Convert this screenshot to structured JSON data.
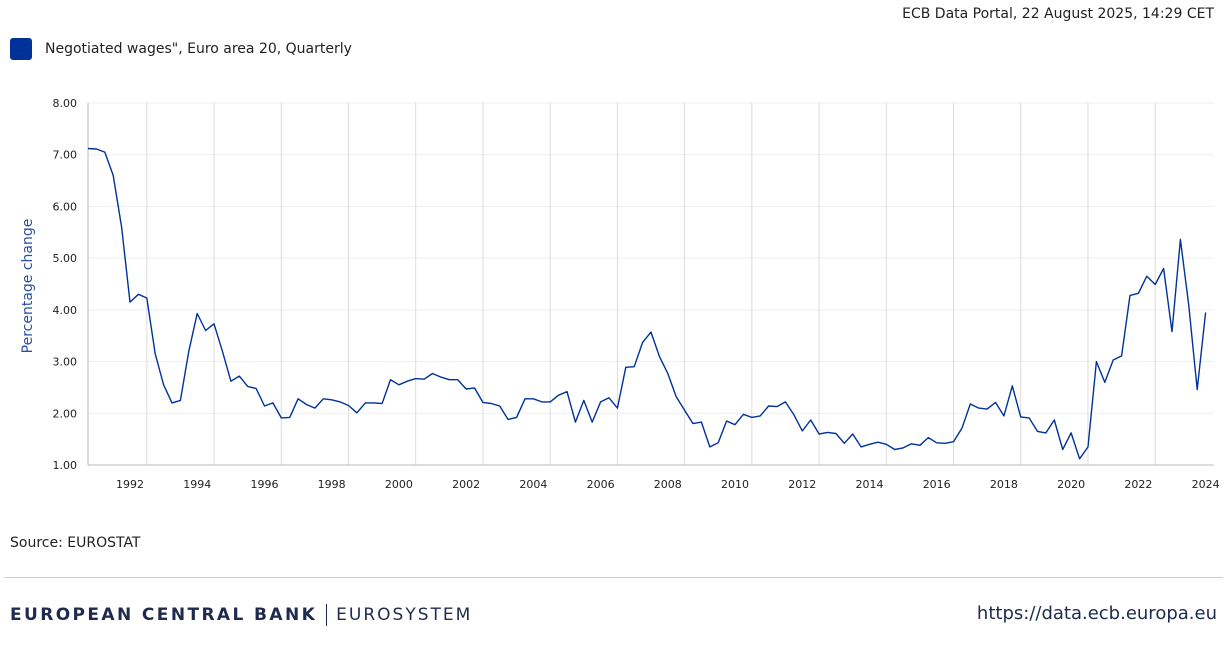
{
  "header": {
    "stamp": "ECB Data Portal, 22 August 2025, 14:29 CET"
  },
  "legend": {
    "label": "Negotiated wages\", Euro area 20, Quarterly",
    "color": "#003299"
  },
  "source": "Source: EUROSTAT",
  "footer": {
    "bank": "EUROPEAN CENTRAL BANK",
    "system": "EUROSYSTEM",
    "url": "https://data.ecb.europa.eu"
  },
  "chart_data": {
    "type": "line",
    "title": "",
    "xlabel": "",
    "ylabel": "Percentage change",
    "ylim": [
      1,
      8
    ],
    "yticks": [
      "1.00",
      "2.00",
      "3.00",
      "4.00",
      "5.00",
      "6.00",
      "7.00",
      "8.00"
    ],
    "xticks": [
      "1992",
      "1994",
      "1996",
      "1998",
      "2000",
      "2002",
      "2004",
      "2006",
      "2008",
      "2010",
      "2012",
      "2014",
      "2016",
      "2018",
      "2020",
      "2022",
      "2024"
    ],
    "grid": true,
    "legend_position": "top-left",
    "series": [
      {
        "name": "Negotiated wages\", Euro area 20, Quarterly",
        "color": "#003299",
        "start": "1991-Q2",
        "values": [
          7.12,
          7.11,
          7.05,
          6.6,
          5.6,
          4.15,
          4.3,
          4.23,
          3.15,
          2.55,
          2.2,
          2.25,
          3.2,
          3.93,
          3.6,
          3.73,
          3.2,
          2.62,
          2.72,
          2.52,
          2.48,
          2.14,
          2.2,
          1.91,
          1.92,
          2.28,
          2.17,
          2.1,
          2.28,
          2.26,
          2.22,
          2.15,
          2.01,
          2.2,
          2.2,
          2.19,
          2.65,
          2.55,
          2.62,
          2.67,
          2.66,
          2.77,
          2.7,
          2.65,
          2.65,
          2.47,
          2.49,
          2.21,
          2.19,
          2.14,
          1.88,
          1.92,
          2.28,
          2.28,
          2.22,
          2.22,
          2.35,
          2.42,
          1.83,
          2.25,
          1.83,
          2.22,
          2.3,
          2.1,
          2.89,
          2.9,
          3.37,
          3.57,
          3.1,
          2.77,
          2.32,
          2.06,
          1.8,
          1.83,
          1.35,
          1.43,
          1.85,
          1.78,
          1.98,
          1.92,
          1.95,
          2.14,
          2.13,
          2.22,
          1.97,
          1.66,
          1.87,
          1.6,
          1.63,
          1.61,
          1.42,
          1.6,
          1.35,
          1.4,
          1.44,
          1.4,
          1.3,
          1.33,
          1.41,
          1.38,
          1.53,
          1.43,
          1.42,
          1.45,
          1.71,
          2.18,
          2.1,
          2.08,
          2.21,
          1.95,
          2.53,
          1.93,
          1.91,
          1.65,
          1.62,
          1.87,
          1.3,
          1.62,
          1.12,
          1.35,
          3.0,
          2.6,
          3.03,
          3.11,
          4.28,
          4.32,
          4.65,
          4.49,
          4.8,
          3.58,
          5.36,
          4.08,
          2.46,
          3.95
        ]
      }
    ]
  }
}
